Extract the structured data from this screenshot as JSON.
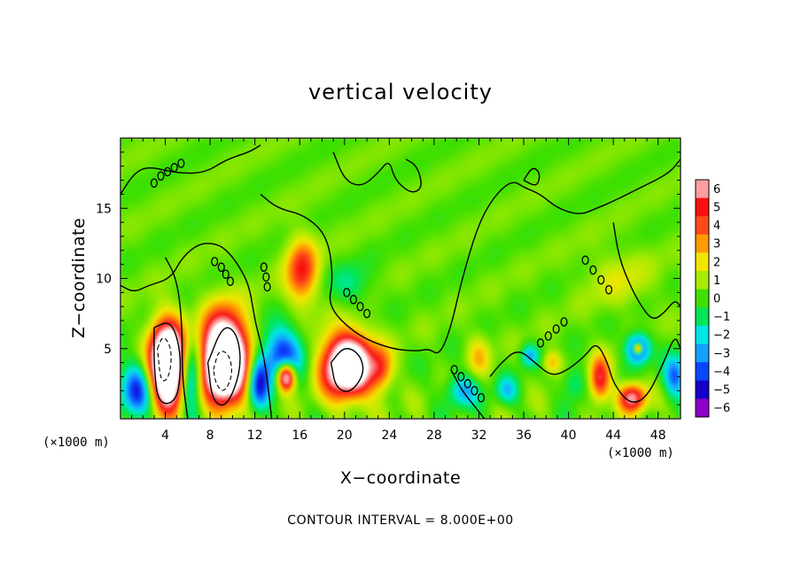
{
  "chart_data": {
    "type": "heatmap",
    "title": "vertical velocity",
    "xlabel": "X−coordinate",
    "ylabel": "Z−coordinate",
    "x_unit": "(×1000 m)",
    "x_unit_right": "(×1000 m)",
    "xlim": [
      0,
      50
    ],
    "ylim": [
      0,
      20
    ],
    "x_ticks": [
      4,
      8,
      12,
      16,
      20,
      24,
      28,
      32,
      36,
      40,
      44,
      48
    ],
    "y_ticks": [
      5,
      10,
      15
    ],
    "x_tick_labels": [
      "4",
      "8",
      "12",
      "16",
      "20",
      "24",
      "28",
      "32",
      "36",
      "40",
      "44",
      "48"
    ],
    "y_tick_labels": [
      "5",
      "10",
      "15"
    ],
    "annotation": "CONTOUR INTERVAL = 8.000E+00",
    "colorbar": {
      "levels": [
        6,
        5,
        4,
        3,
        2,
        1,
        0,
        -1,
        -2,
        -3,
        -4,
        -5,
        -6
      ],
      "labels": [
        "6",
        "5",
        "4",
        "3",
        "2",
        "1",
        "0",
        "−1",
        "−2",
        "−3",
        "−4",
        "−5",
        "−6"
      ],
      "colors": [
        "#ff9f9f",
        "#f81010",
        "#ff4a1a",
        "#ff9a00",
        "#f2e600",
        "#a8ea00",
        "#3fe000",
        "#00e65a",
        "#00e6e6",
        "#14a0ff",
        "#0a46ff",
        "#1400c8",
        "#8c00c8"
      ],
      "range": [
        -6,
        6
      ]
    },
    "background_value": 0.3,
    "features": [
      {
        "x": 1.5,
        "z": 2.0,
        "w": -4.5,
        "rx": 1.5,
        "rz": 2.0
      },
      {
        "x": 4.2,
        "z": 3.8,
        "w": 14,
        "rx": 1.5,
        "rz": 2.8
      },
      {
        "x": 6.3,
        "z": 3.0,
        "w": -5,
        "rx": 1.0,
        "rz": 2.5
      },
      {
        "x": 9.3,
        "z": 4.2,
        "w": 14,
        "rx": 2.0,
        "rz": 3.0
      },
      {
        "x": 12.3,
        "z": 2.5,
        "w": -5,
        "rx": 1.0,
        "rz": 2.0
      },
      {
        "x": 14.5,
        "z": 4.5,
        "w": -5,
        "rx": 1.8,
        "rz": 2.0
      },
      {
        "x": 14.8,
        "z": 3.0,
        "w": 9,
        "rx": 0.8,
        "rz": 1.0
      },
      {
        "x": 16.2,
        "z": 10.5,
        "w": 4.5,
        "rx": 1.4,
        "rz": 2.3
      },
      {
        "x": 20.3,
        "z": 3.8,
        "w": 11,
        "rx": 2.2,
        "rz": 2.2
      },
      {
        "x": 23.3,
        "z": 3.5,
        "w": 3,
        "rx": 1.0,
        "rz": 1.5
      },
      {
        "x": 20.5,
        "z": 9.5,
        "w": -1.5,
        "rx": 2.0,
        "rz": 1.5
      },
      {
        "x": 30.5,
        "z": 2.0,
        "w": -3,
        "rx": 1.5,
        "rz": 1.2
      },
      {
        "x": 32.0,
        "z": 4.5,
        "w": 2,
        "rx": 1.0,
        "rz": 1.5
      },
      {
        "x": 34.5,
        "z": 2.0,
        "w": -2.5,
        "rx": 1.0,
        "rz": 1.0
      },
      {
        "x": 36.5,
        "z": 4.5,
        "w": -3,
        "rx": 0.8,
        "rz": 0.8
      },
      {
        "x": 38.5,
        "z": 4.0,
        "w": 2.5,
        "rx": 0.8,
        "rz": 0.8
      },
      {
        "x": 40.5,
        "z": 2.5,
        "w": -2,
        "rx": 1.0,
        "rz": 1.2
      },
      {
        "x": 42.8,
        "z": 2.8,
        "w": 5,
        "rx": 0.9,
        "rz": 1.6
      },
      {
        "x": 45.7,
        "z": 1.5,
        "w": 6,
        "rx": 1.2,
        "rz": 1.0
      },
      {
        "x": 46.2,
        "z": 5.0,
        "w": -6,
        "rx": 1.0,
        "rz": 1.0
      },
      {
        "x": 46.2,
        "z": 5.0,
        "w": 8,
        "rx": 0.4,
        "rz": 0.4
      },
      {
        "x": 49.5,
        "z": 3.0,
        "w": -4,
        "rx": 1.0,
        "rz": 1.5
      },
      {
        "x": 44.5,
        "z": 10.0,
        "w": 1.2,
        "rx": 3.0,
        "rz": 2.0
      }
    ],
    "contours": {
      "solid": [
        [
          [
            3.0,
            6.5
          ],
          [
            4.4,
            7.0
          ],
          [
            5.2,
            5.5
          ],
          [
            5.4,
            3.5
          ],
          [
            5.0,
            1.2
          ],
          [
            3.4,
            1.0
          ],
          [
            3.0,
            3.5
          ],
          [
            3.0,
            6.5
          ]
        ],
        [
          [
            7.8,
            4.0
          ],
          [
            9.2,
            6.8
          ],
          [
            10.5,
            6.0
          ],
          [
            10.8,
            3.5
          ],
          [
            9.5,
            0.8
          ],
          [
            8.2,
            1.2
          ],
          [
            7.8,
            4.0
          ]
        ],
        [
          [
            18.8,
            4.0
          ],
          [
            20.0,
            5.2
          ],
          [
            21.4,
            4.6
          ],
          [
            21.8,
            3.2
          ],
          [
            20.5,
            1.8
          ],
          [
            19.2,
            2.2
          ],
          [
            18.8,
            4.0
          ]
        ],
        [
          [
            0.0,
            16.0
          ],
          [
            1.2,
            17.5
          ],
          [
            2.5,
            18.0
          ],
          [
            5.0,
            17.5
          ],
          [
            7.5,
            17.5
          ],
          [
            9.5,
            18.5
          ],
          [
            11.5,
            19.0
          ],
          [
            12.5,
            19.5
          ]
        ],
        [
          [
            0.0,
            9.5
          ],
          [
            1.2,
            9.0
          ],
          [
            2.5,
            9.5
          ],
          [
            4.5,
            10.0
          ],
          [
            5.5,
            11.5
          ],
          [
            7.0,
            12.5
          ],
          [
            8.5,
            12.5
          ],
          [
            9.5,
            12.0
          ],
          [
            10.5,
            11.0
          ],
          [
            11.5,
            9.5
          ],
          [
            12.0,
            7.0
          ],
          [
            12.5,
            5.5
          ],
          [
            13.0,
            3.5
          ],
          [
            13.5,
            0.0
          ]
        ],
        [
          [
            6.0,
            0.0
          ],
          [
            5.5,
            3.0
          ],
          [
            5.5,
            7.0
          ],
          [
            5.0,
            10.0
          ],
          [
            4.0,
            11.5
          ]
        ],
        [
          [
            12.5,
            16.0
          ],
          [
            14.0,
            15.0
          ],
          [
            16.5,
            14.5
          ],
          [
            18.5,
            13.0
          ],
          [
            19.0,
            10.0
          ],
          [
            18.5,
            8.0
          ],
          [
            21.0,
            6.0
          ],
          [
            24.0,
            5.0
          ],
          [
            26.5,
            4.8
          ],
          [
            27.5,
            5.0
          ],
          [
            28.5,
            4.5
          ],
          [
            29.5,
            6.5
          ],
          [
            30.5,
            10.0
          ],
          [
            32.0,
            14.0
          ],
          [
            33.5,
            16.0
          ],
          [
            35.0,
            17.0
          ],
          [
            36.0,
            16.5
          ],
          [
            37.5,
            16.0
          ],
          [
            39.0,
            15.0
          ],
          [
            41.0,
            14.5
          ],
          [
            42.5,
            15.0
          ],
          [
            44.0,
            15.5
          ],
          [
            46.5,
            16.5
          ],
          [
            49.0,
            17.5
          ],
          [
            50.0,
            18.5
          ]
        ],
        [
          [
            19.0,
            19.0
          ],
          [
            20.0,
            17.0
          ],
          [
            21.5,
            16.5
          ],
          [
            23.0,
            17.5
          ],
          [
            24.0,
            18.5
          ],
          [
            24.5,
            17.0
          ],
          [
            26.0,
            16.0
          ],
          [
            27.0,
            16.5
          ],
          [
            26.5,
            18.0
          ],
          [
            25.5,
            18.5
          ]
        ],
        [
          [
            36.0,
            17.0
          ],
          [
            37.2,
            16.5
          ],
          [
            37.5,
            17.5
          ],
          [
            36.8,
            18.0
          ],
          [
            36.0,
            17.0
          ]
        ],
        [
          [
            44.0,
            14.0
          ],
          [
            44.5,
            11.5
          ],
          [
            45.5,
            9.5
          ],
          [
            46.5,
            8.0
          ],
          [
            47.5,
            7.0
          ],
          [
            48.5,
            7.5
          ],
          [
            49.5,
            8.5
          ],
          [
            50.0,
            8.0
          ]
        ],
        [
          [
            29.5,
            3.5
          ],
          [
            30.5,
            2.0
          ],
          [
            31.5,
            1.0
          ],
          [
            32.5,
            0.0
          ]
        ],
        [
          [
            33.0,
            3.0
          ],
          [
            34.0,
            4.0
          ],
          [
            35.5,
            5.0
          ],
          [
            37.0,
            4.0
          ],
          [
            38.5,
            3.0
          ],
          [
            40.0,
            3.5
          ],
          [
            41.5,
            4.5
          ],
          [
            42.5,
            5.5
          ],
          [
            43.5,
            4.0
          ],
          [
            44.0,
            2.5
          ],
          [
            45.5,
            1.0
          ],
          [
            47.0,
            1.5
          ],
          [
            48.5,
            4.0
          ],
          [
            49.5,
            6.0
          ],
          [
            50.0,
            5.0
          ]
        ]
      ],
      "dashed": [
        [
          [
            3.3,
            5.0
          ],
          [
            3.8,
            6.0
          ],
          [
            4.6,
            5.0
          ],
          [
            4.4,
            3.0
          ],
          [
            3.6,
            2.5
          ],
          [
            3.3,
            5.0
          ]
        ],
        [
          [
            8.3,
            3.5
          ],
          [
            8.8,
            5.0
          ],
          [
            9.8,
            4.5
          ],
          [
            10.0,
            3.0
          ],
          [
            9.2,
            1.8
          ],
          [
            8.5,
            2.5
          ],
          [
            8.3,
            3.5
          ]
        ]
      ],
      "loops": [
        [
          [
            3.0,
            16.8
          ],
          [
            3.6,
            17.3
          ],
          [
            4.2,
            17.6
          ],
          [
            4.8,
            17.9
          ],
          [
            5.4,
            18.2
          ]
        ],
        [
          [
            8.4,
            11.2
          ],
          [
            9.0,
            10.8
          ],
          [
            9.4,
            10.3
          ],
          [
            9.8,
            9.8
          ]
        ],
        [
          [
            12.8,
            10.8
          ],
          [
            13.0,
            10.1
          ],
          [
            13.1,
            9.4
          ]
        ],
        [
          [
            20.2,
            9.0
          ],
          [
            20.8,
            8.5
          ],
          [
            21.4,
            8.0
          ],
          [
            22.0,
            7.5
          ]
        ],
        [
          [
            29.8,
            3.5
          ],
          [
            30.4,
            3.0
          ],
          [
            31.0,
            2.5
          ],
          [
            31.6,
            2.0
          ],
          [
            32.2,
            1.5
          ]
        ],
        [
          [
            37.5,
            5.4
          ],
          [
            38.2,
            5.9
          ],
          [
            38.9,
            6.4
          ],
          [
            39.6,
            6.9
          ]
        ],
        [
          [
            41.5,
            11.3
          ],
          [
            42.2,
            10.6
          ],
          [
            42.9,
            9.9
          ],
          [
            43.6,
            9.2
          ]
        ]
      ]
    }
  }
}
